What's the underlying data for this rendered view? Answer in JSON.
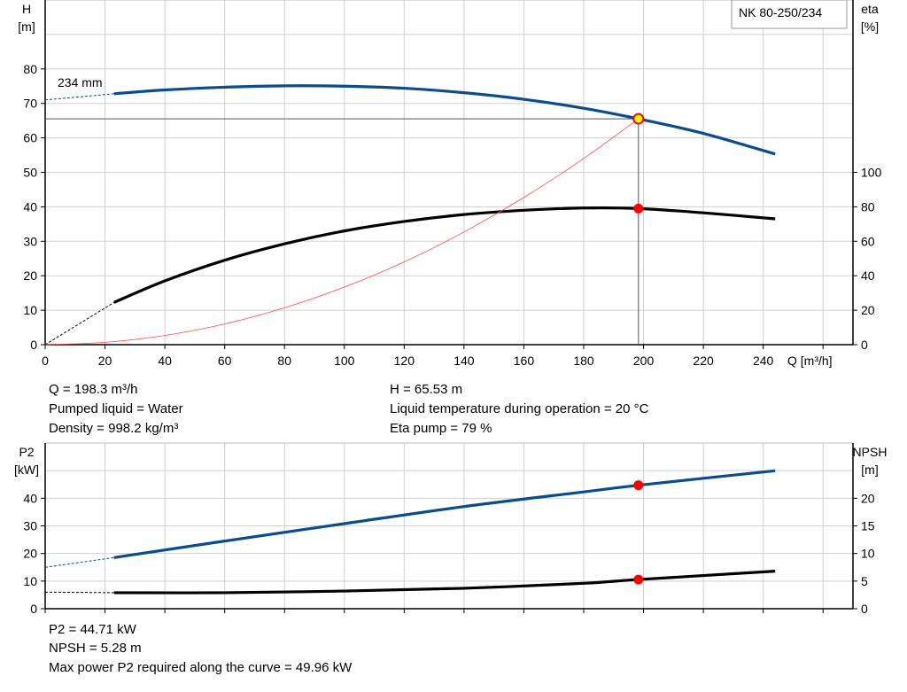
{
  "pump_label": "NK 80-250/234",
  "colors": {
    "head": "#0a4c8c",
    "eta": "#000000",
    "system": "#ff4a4a",
    "point": "#ff0000",
    "point_head_fill": "#ffff00",
    "grid": "#d0d0d0"
  },
  "chart_data": [
    {
      "type": "line",
      "xlabel": "Q [m³/h]",
      "ylabel_left": {
        "name": "H",
        "unit": "[m]"
      },
      "ylabel_right": {
        "name": "eta",
        "unit": "[%]"
      },
      "xlim": [
        0,
        270
      ],
      "ylim_left": [
        0,
        100
      ],
      "ylim_right": [
        0,
        200
      ],
      "x_ticks": [
        0,
        20,
        40,
        60,
        80,
        100,
        120,
        140,
        160,
        180,
        200,
        220,
        240
      ],
      "y_left_ticks": [
        0,
        10,
        20,
        30,
        40,
        50,
        60,
        70,
        80
      ],
      "y_right_ticks": [
        0,
        20,
        40,
        60,
        80,
        100
      ],
      "grid": true,
      "annotation": "234 mm",
      "series": [
        {
          "id": "head",
          "axis": "left",
          "dashed": [
            [
              0,
              71.0
            ],
            [
              23,
              72.8
            ]
          ],
          "points": [
            [
              23,
              72.8
            ],
            [
              40,
              73.9
            ],
            [
              60,
              74.7
            ],
            [
              80,
              75.1
            ],
            [
              100,
              75.0
            ],
            [
              120,
              74.4
            ],
            [
              140,
              73.1
            ],
            [
              160,
              71.2
            ],
            [
              180,
              68.6
            ],
            [
              198.3,
              65.53
            ],
            [
              220,
              61.3
            ],
            [
              244,
              55.3
            ]
          ]
        },
        {
          "id": "eta",
          "axis": "right",
          "dashed": [
            [
              0,
              0
            ],
            [
              23,
              24.5
            ]
          ],
          "points": [
            [
              23,
              24.5
            ],
            [
              40,
              37
            ],
            [
              60,
              49
            ],
            [
              80,
              58.5
            ],
            [
              100,
              66
            ],
            [
              120,
              71.5
            ],
            [
              140,
              75.5
            ],
            [
              160,
              78
            ],
            [
              180,
              79.3
            ],
            [
              198.3,
              79
            ],
            [
              220,
              76.5
            ],
            [
              244,
              73
            ]
          ]
        },
        {
          "id": "system",
          "axis": "left",
          "points": [
            [
              0,
              0
            ],
            [
              20,
              0.67
            ],
            [
              40,
              2.67
            ],
            [
              60,
              6.0
            ],
            [
              80,
              10.7
            ],
            [
              100,
              16.7
            ],
            [
              120,
              24.0
            ],
            [
              140,
              32.7
            ],
            [
              160,
              42.7
            ],
            [
              180,
              54.0
            ],
            [
              198.3,
              65.53
            ]
          ]
        }
      ],
      "operating_point": {
        "Q": 198.3,
        "H": 65.53,
        "eta": 79
      }
    },
    {
      "type": "line",
      "ylabel_left": {
        "name": "P2",
        "unit": "[kW]"
      },
      "ylabel_right": {
        "name": "NPSH",
        "unit": "[m]"
      },
      "xlim": [
        0,
        270
      ],
      "ylim_left": [
        0,
        60
      ],
      "ylim_right": [
        0,
        30
      ],
      "y_left_ticks": [
        0,
        10,
        20,
        30,
        40
      ],
      "y_right_ticks": [
        0,
        5,
        10,
        15,
        20
      ],
      "grid": true,
      "series": [
        {
          "id": "p2",
          "axis": "left",
          "dashed": [
            [
              0,
              15
            ],
            [
              23,
              18.5
            ]
          ],
          "points": [
            [
              23,
              18.5
            ],
            [
              60,
              24.5
            ],
            [
              100,
              30.8
            ],
            [
              140,
              37
            ],
            [
              180,
              42.3
            ],
            [
              198.3,
              44.71
            ],
            [
              244,
              49.96
            ]
          ]
        },
        {
          "id": "npsh",
          "axis": "right",
          "dashed": [
            [
              0,
              3.0
            ],
            [
              23,
              2.9
            ]
          ],
          "points": [
            [
              23,
              2.9
            ],
            [
              60,
              2.9
            ],
            [
              100,
              3.2
            ],
            [
              140,
              3.7
            ],
            [
              180,
              4.6
            ],
            [
              198.3,
              5.28
            ],
            [
              244,
              6.8
            ]
          ]
        }
      ],
      "operating_point": {
        "Q": 198.3,
        "P2": 44.71,
        "NPSH": 5.28
      }
    }
  ],
  "info_top": {
    "q": "Q = 198.3 m³/h",
    "liquid": "Pumped liquid = Water",
    "density": "Density = 998.2 kg/m³",
    "h": "H = 65.53 m",
    "temp": "Liquid temperature during operation = 20 °C",
    "eta": "Eta pump = 79 %"
  },
  "info_bottom": {
    "p2": "P2 = 44.71 kW",
    "npsh": "NPSH = 5.28 m",
    "max_p2": "Max power P2 required along the curve = 49.96 kW"
  }
}
